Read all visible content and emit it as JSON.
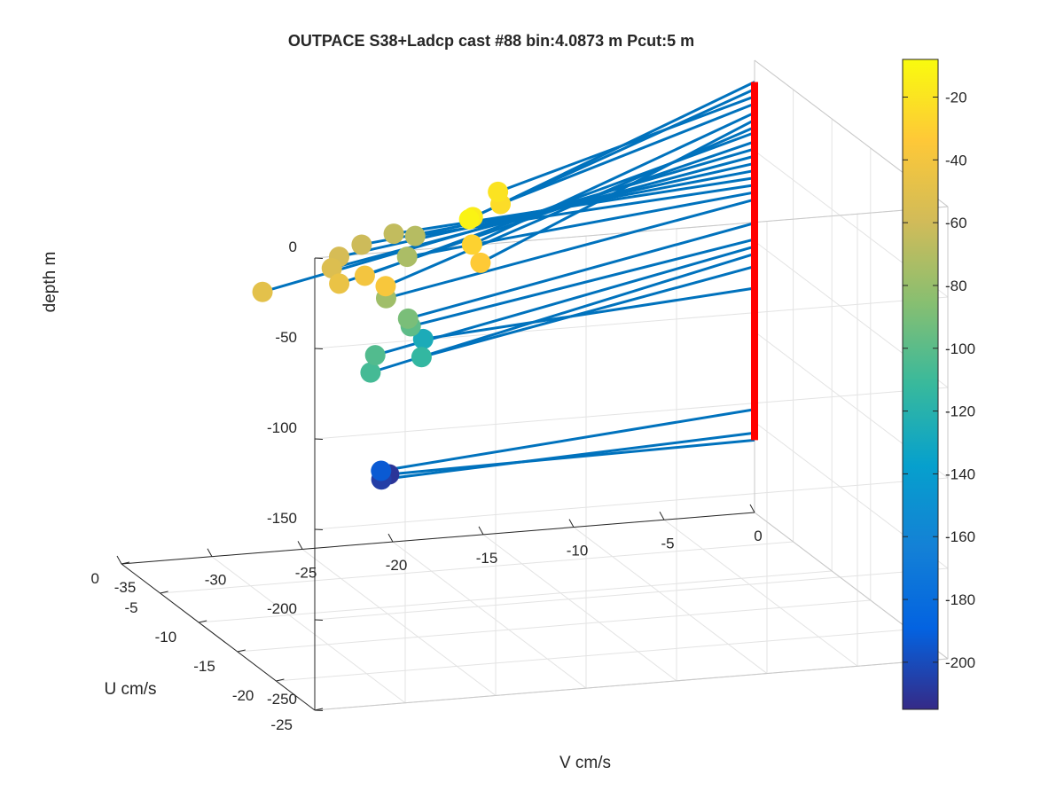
{
  "chart_data": {
    "type": "scatter",
    "title": "OUTPACE S38+Ladcp cast #88 bin:4.0873 m  Pcut:5 m",
    "xlabel": "V cm/s",
    "ylabel": "U cm/s",
    "zlabel": "depth m",
    "xlim": [
      -35,
      0
    ],
    "ylim": [
      -25,
      0
    ],
    "zlim": [
      -250,
      0
    ],
    "x_ticks": [
      "-35",
      "-30",
      "-25",
      "-20",
      "-15",
      "-10",
      "-5",
      "0"
    ],
    "y_ticks": [
      "-25",
      "-20",
      "-15",
      "-10",
      "-5",
      "0"
    ],
    "z_ticks": [
      "0",
      "-50",
      "-100",
      "-150",
      "-200",
      "-250"
    ],
    "grid": true,
    "colormap": "parula",
    "colorbar": {
      "range": [
        -215,
        -8
      ],
      "ticks": [
        "-20",
        "-40",
        "-60",
        "-80",
        "-100",
        "-120",
        "-140",
        "-160",
        "-180",
        "-200"
      ],
      "placement": "right"
    },
    "origin_line": {
      "x": 0,
      "y": 0,
      "z_range": [
        -210,
        -12
      ],
      "color": "#ff0000"
    },
    "stick_color": "#0072bd",
    "points": [
      {
        "v": -23.3,
        "u": -17.6,
        "depth": -12
      },
      {
        "v": -22.5,
        "u": -16.2,
        "depth": -16
      },
      {
        "v": -19.1,
        "u": -11.5,
        "depth": -20
      },
      {
        "v": -19.3,
        "u": -12.3,
        "depth": -24
      },
      {
        "v": -22.8,
        "u": -16.8,
        "depth": -29
      },
      {
        "v": -23.1,
        "u": -18.6,
        "depth": -33
      },
      {
        "v": -28.9,
        "u": -19.9,
        "depth": -37
      },
      {
        "v": -28.9,
        "u": -17.2,
        "depth": -40
      },
      {
        "v": -30.1,
        "u": -16.7,
        "depth": -45
      },
      {
        "v": -34.0,
        "u": -15.9,
        "depth": -49
      },
      {
        "v": -28.5,
        "u": -12.0,
        "depth": -53
      },
      {
        "v": -26.9,
        "u": -9.2,
        "depth": -57
      },
      {
        "v": -24.5,
        "u": -6.5,
        "depth": -61
      },
      {
        "v": -21.7,
        "u": -4.1,
        "depth": -65
      },
      {
        "v": -20.3,
        "u": -3.6,
        "depth": -69
      },
      {
        "v": -21.6,
        "u": -5.6,
        "depth": -73
      },
      {
        "v": -24.9,
        "u": -10.6,
        "depth": -77
      },
      {
        "v": -23.6,
        "u": -10.4,
        "depth": -90
      },
      {
        "v": -22.9,
        "u": -9.1,
        "depth": -99
      },
      {
        "v": -26.1,
        "u": -12.0,
        "depth": -103
      },
      {
        "v": -27.0,
        "u": -13.5,
        "depth": -107
      },
      {
        "v": -22.6,
        "u": -9.8,
        "depth": -114
      },
      {
        "v": -19.9,
        "u": -3.7,
        "depth": -126
      },
      {
        "v": -22.7,
        "u": -4.8,
        "depth": -193
      },
      {
        "v": -21.7,
        "u": -2.5,
        "depth": -206
      },
      {
        "v": -20.5,
        "u": -0.7,
        "depth": -210
      }
    ]
  }
}
